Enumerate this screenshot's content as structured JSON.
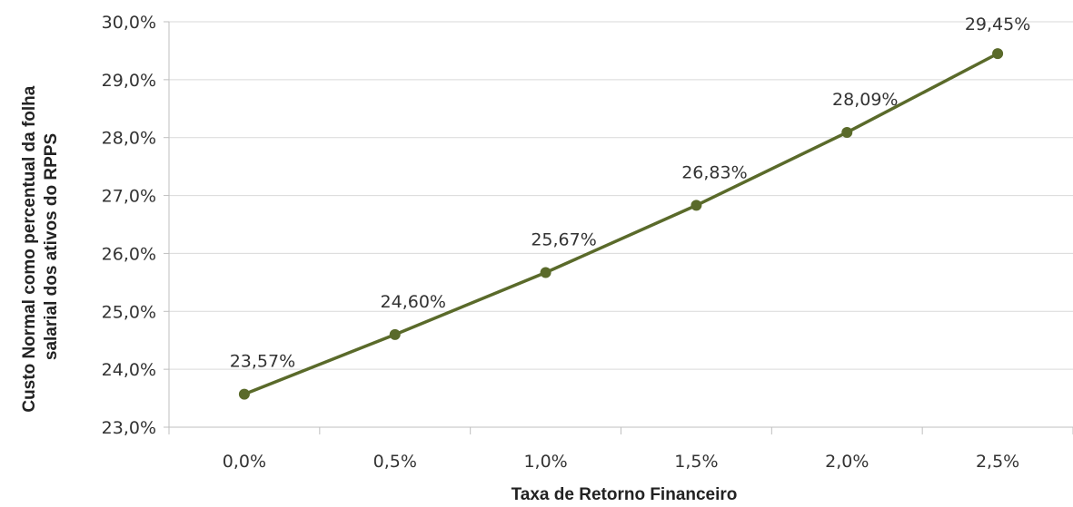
{
  "chart_data": {
    "type": "line",
    "categories": [
      "0,0%",
      "0,5%",
      "1,0%",
      "1,5%",
      "2,0%",
      "2,5%"
    ],
    "series": [
      {
        "values": [
          23.57,
          24.6,
          25.67,
          26.83,
          28.09,
          29.45
        ],
        "data_labels": [
          "23,57%",
          "24,60%",
          "25,67%",
          "26,83%",
          "28,09%",
          "29,45%"
        ],
        "color": "#5a6a2a"
      }
    ],
    "ylim": [
      23.0,
      30.0
    ],
    "yticks": [
      23.0,
      24.0,
      25.0,
      26.0,
      27.0,
      28.0,
      29.0,
      30.0
    ],
    "ytick_labels": [
      "23,0%",
      "24,0%",
      "25,0%",
      "26,0%",
      "27,0%",
      "28,0%",
      "29,0%",
      "30,0%"
    ],
    "xlabel": "Taxa de Retorno Financeiro",
    "ylabel_lines": [
      "Custo Normal como percentual da folha",
      "salarial dos ativos do RPPS"
    ],
    "grid": true,
    "legend": "none"
  }
}
